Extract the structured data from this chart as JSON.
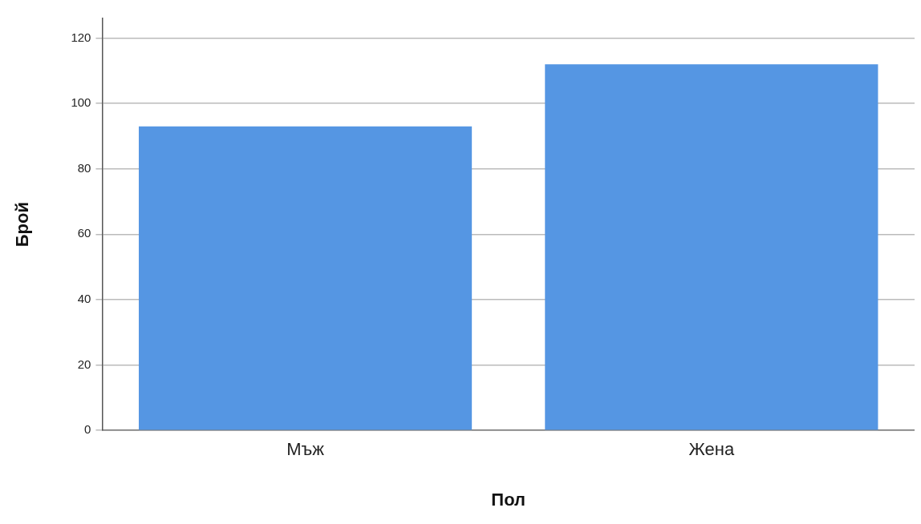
{
  "chart_data": {
    "type": "bar",
    "xlabel": "Пол",
    "ylabel": "Брой",
    "categories": [
      "Мъж",
      "Жена"
    ],
    "values": [
      93,
      112
    ],
    "color": "#5596e3",
    "ylim": [
      0,
      126
    ],
    "yticks": [
      0,
      20,
      40,
      60,
      80,
      100,
      120
    ],
    "grid": "y",
    "legend": false
  }
}
